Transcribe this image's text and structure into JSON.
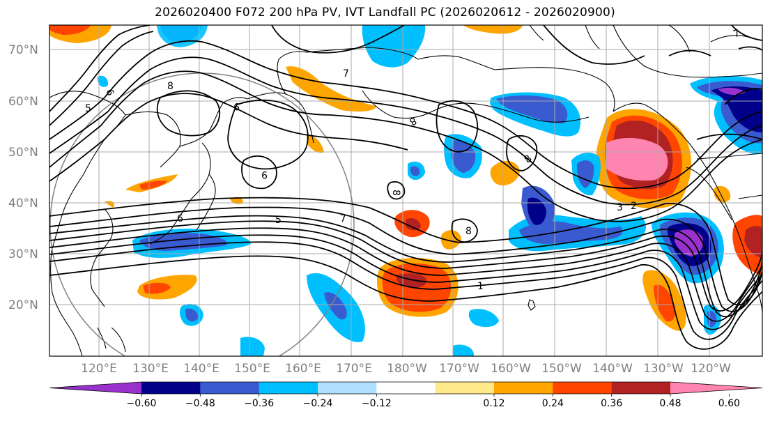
{
  "title": "2026020400 F072 200 hPa PV, IVT Landfall PC (2026020612 - 2026020900)",
  "latitude_labels": [
    "70°N",
    "60°N",
    "50°N",
    "40°N",
    "30°N",
    "20°N"
  ],
  "longitude_labels": [
    "120°E",
    "130°E",
    "140°E",
    "150°E",
    "160°E",
    "170°E",
    "180°W",
    "170°W",
    "160°W",
    "150°W",
    "140°W",
    "130°W",
    "120°W"
  ],
  "contour_labels": [
    "6",
    "8",
    "9",
    "7",
    "8",
    "9",
    "8",
    "8",
    "5",
    "7",
    "8",
    "6",
    "1",
    "2",
    "3",
    "5",
    "7"
  ],
  "colorbar": {
    "colors": [
      "#9932CC",
      "#00008B",
      "#3A5BCF",
      "#00BFFF",
      "#B0E0FF",
      "#FFFFFF",
      "#FFE98A",
      "#FFA500",
      "#FF4500",
      "#B22222",
      "#FF85B0"
    ],
    "tick_labels": [
      "−0.60",
      "−0.48",
      "−0.36",
      "−0.24",
      "−0.12",
      "0.12",
      "0.24",
      "0.36",
      "0.48",
      "0.60"
    ]
  },
  "legend_colors": {
    "positive_max": "#FF85B0",
    "negative_max": "#9932CC",
    "contour": "#000000",
    "grid": "#aaaaaa",
    "coast": "#000000",
    "circle": "#808080"
  }
}
